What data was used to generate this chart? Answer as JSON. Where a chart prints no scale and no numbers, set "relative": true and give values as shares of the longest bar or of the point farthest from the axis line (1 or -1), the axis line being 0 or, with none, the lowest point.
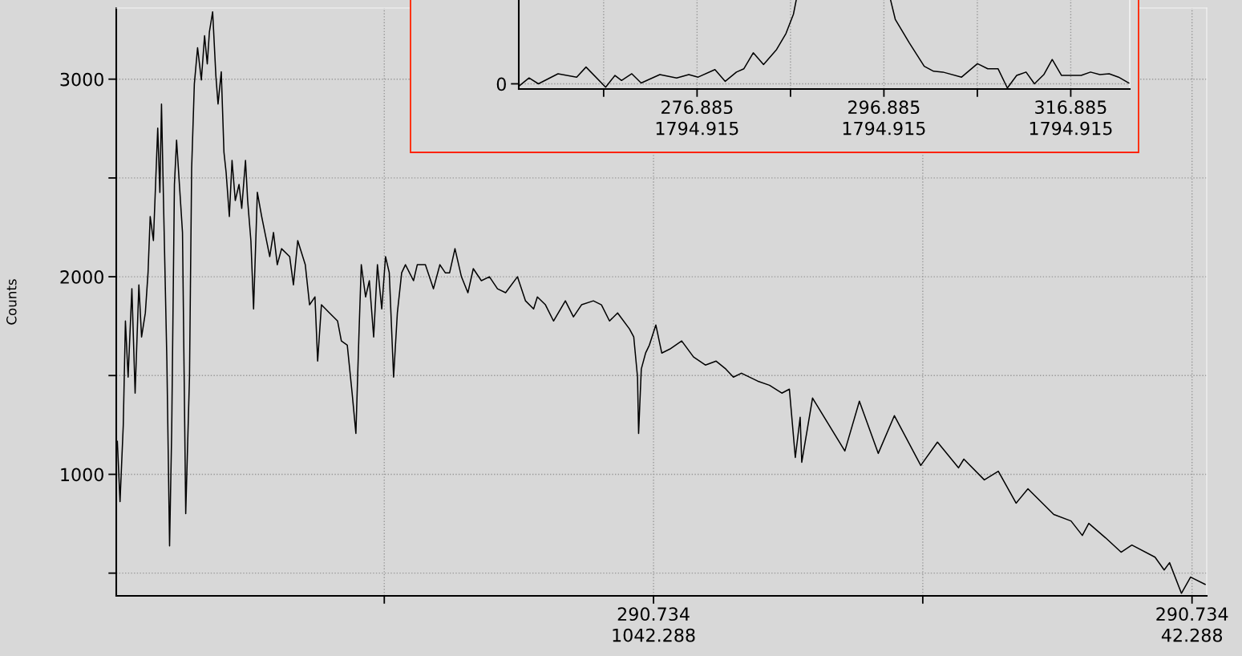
{
  "chart_data": [
    {
      "type": "line",
      "ylabel": "Counts",
      "grid": true,
      "line_style": "solid",
      "marker": "none",
      "x": [
        2038,
        2033,
        2027,
        2023,
        2018,
        2011,
        2005,
        1998,
        1993,
        1986,
        1981,
        1977,
        1971,
        1963,
        1959,
        1956,
        1952,
        1946,
        1941,
        1937,
        1932,
        1928,
        1917,
        1911,
        1904,
        1900,
        1895,
        1889,
        1882,
        1876,
        1871,
        1867,
        1861,
        1855,
        1851,
        1845,
        1840,
        1836,
        1830,
        1825,
        1819,
        1812,
        1807,
        1800,
        1796,
        1790,
        1785,
        1778,
        1770,
        1755,
        1748,
        1741,
        1733,
        1718,
        1711,
        1703,
        1689,
        1681,
        1671,
        1666,
        1659,
        1644,
        1629,
        1622,
        1611,
        1602,
        1595,
        1589,
        1585,
        1577,
        1570,
        1562,
        1555,
        1547,
        1540,
        1533,
        1525,
        1518,
        1510,
        1503,
        1488,
        1481,
        1466,
        1451,
        1439,
        1429,
        1421,
        1411,
        1399,
        1387,
        1377,
        1362,
        1347,
        1332,
        1317,
        1295,
        1280,
        1265,
        1258,
        1243,
        1228,
        1206,
        1191,
        1176,
        1154,
        1139,
        1124,
        1109,
        1087,
        1079,
        1072,
        1070,
        1065,
        1057,
        1050,
        1038,
        1027,
        1012,
        990,
        968,
        946,
        926,
        908,
        894,
        879,
        849,
        827,
        804,
        790,
        779,
        770,
        767,
        747,
        687,
        660,
        625,
        595,
        546,
        515,
        476,
        466,
        428,
        402,
        369,
        347,
        299,
        267,
        246,
        234,
        203,
        174,
        154,
        111,
        94,
        84,
        62,
        45,
        18
      ],
      "series": [
        {
          "color": "#000000",
          "values": [
            1167,
            862,
            1248,
            1776,
            1492,
            1939,
            1411,
            1959,
            1695,
            1817,
            2020,
            2305,
            2183,
            2752,
            2427,
            2874,
            2346,
            1573,
            638,
            1228,
            2467,
            2691,
            2224,
            801,
            1492,
            2549,
            2976,
            3159,
            2996,
            3220,
            3077,
            3240,
            3341,
            3016,
            2874,
            3037,
            2630,
            2528,
            2305,
            2589,
            2386,
            2467,
            2346,
            2589,
            2386,
            2183,
            1837,
            2427,
            2305,
            2102,
            2224,
            2061,
            2142,
            2102,
            1959,
            2183,
            2061,
            1858,
            1898,
            1573,
            1858,
            1817,
            1776,
            1675,
            1654,
            1411,
            1207,
            1736,
            2061,
            1898,
            1980,
            1695,
            2061,
            1837,
            2102,
            2020,
            1492,
            1817,
            2020,
            2061,
            1980,
            2061,
            2061,
            1939,
            2061,
            2020,
            2020,
            2142,
            2000,
            1919,
            2041,
            1980,
            2000,
            1939,
            1919,
            2000,
            1878,
            1837,
            1898,
            1858,
            1776,
            1878,
            1797,
            1858,
            1878,
            1858,
            1776,
            1817,
            1736,
            1695,
            1492,
            1207,
            1533,
            1614,
            1654,
            1756,
            1614,
            1634,
            1675,
            1594,
            1553,
            1573,
            1533,
            1492,
            1512,
            1472,
            1451,
            1411,
            1431,
            1085,
            1289,
            1061,
            1386,
            1118,
            1370,
            1106,
            1297,
            1045,
            1163,
            1033,
            1077,
            972,
            1016,
            854,
            927,
            797,
            764,
            691,
            752,
            679,
            606,
            642,
            581,
            516,
            553,
            398,
            480,
            443
          ]
        }
      ],
      "xlim": [
        2040,
        15
      ],
      "xticks": [
        {
          "value": 1542.288,
          "label": null
        },
        1042.288,
        {
          "value": 542.288,
          "label": null
        },
        42.288
      ],
      "annotations": [
        "290.734",
        "290.734"
      ],
      "ylim": [
        385,
        3360
      ],
      "yticks": [
        {
          "value": 500,
          "label": null
        },
        1000,
        {
          "value": 1500,
          "label": null
        },
        2000,
        {
          "value": 2500,
          "label": null
        },
        3000
      ]
    },
    {
      "type": "line",
      "relative": true,
      "grid": true,
      "line_style": "solid",
      "marker": "none",
      "x": [
        257.9,
        258.9,
        259.9,
        262.0,
        264.0,
        265.0,
        267.1,
        268.1,
        268.8,
        269.9,
        270.9,
        272.9,
        274.7,
        276.0,
        277.0,
        278.8,
        279.9,
        281.1,
        281.9,
        282.9,
        284.0,
        285.4,
        286.4,
        287.2,
        287.5,
        292.5,
        297.6,
        298.1,
        299.6,
        301.2,
        302.2,
        303.2,
        305.2,
        306.9,
        308.0,
        309.1,
        310.1,
        311.1,
        312.1,
        313.0,
        314.0,
        314.9,
        315.9,
        318.0,
        319.0,
        320.0,
        321.0,
        322.0,
        323.1
      ],
      "series": [
        {
          "color": "#000000",
          "values": [
            -0.02,
            0.07,
            0.0,
            0.12,
            0.08,
            0.2,
            -0.04,
            0.1,
            0.04,
            0.12,
            0.01,
            0.11,
            0.07,
            0.11,
            0.08,
            0.17,
            0.03,
            0.14,
            0.18,
            0.37,
            0.23,
            0.41,
            0.6,
            0.83,
            1.0,
            null,
            1.0,
            0.77,
            0.49,
            0.21,
            0.15,
            0.14,
            0.08,
            0.24,
            0.18,
            0.18,
            -0.05,
            0.1,
            0.14,
            0.0,
            0.11,
            0.29,
            0.1,
            0.1,
            0.14,
            0.11,
            0.12,
            0.08,
            0.01
          ]
        }
      ],
      "xlim": [
        257.8,
        323.2
      ],
      "xticks": [
        {
          "value": 266.885,
          "label": null
        },
        276.885,
        {
          "value": 286.885,
          "label": null
        },
        296.885,
        {
          "value": 306.885,
          "label": null
        },
        316.885
      ],
      "annotations": [
        "1794.915",
        "1794.915",
        "1794.915",
        "0"
      ]
    }
  ]
}
